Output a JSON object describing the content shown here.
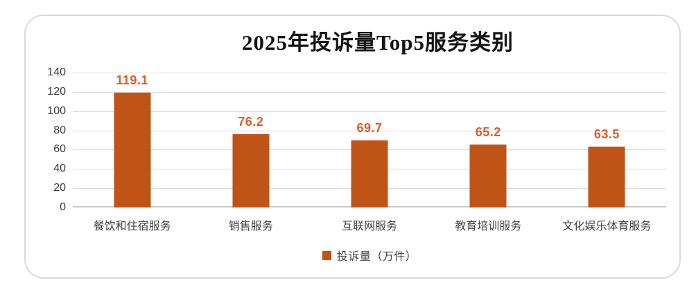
{
  "chart_data": {
    "type": "bar",
    "title": "2025年投诉量Top5服务类别",
    "categories": [
      "餐饮和住宿服务",
      "销售服务",
      "互联网服务",
      "教育培训服务",
      "文化娱乐体育服务"
    ],
    "values": [
      119.1,
      76.2,
      69.7,
      65.2,
      63.5
    ],
    "series_name": "投诉量（万件）",
    "xlabel": "",
    "ylabel": "",
    "ylim": [
      0,
      140
    ],
    "yticks": [
      0,
      20,
      40,
      60,
      80,
      100,
      120,
      140
    ],
    "grid": true,
    "legend_position": "bottom",
    "bar_color": "#C05316",
    "value_label_color": "#DE5A28",
    "gridline_color": "#D9D9D9",
    "axis_line_color": "#C9C9C9",
    "frame_border_color": "#D9D9D9"
  }
}
